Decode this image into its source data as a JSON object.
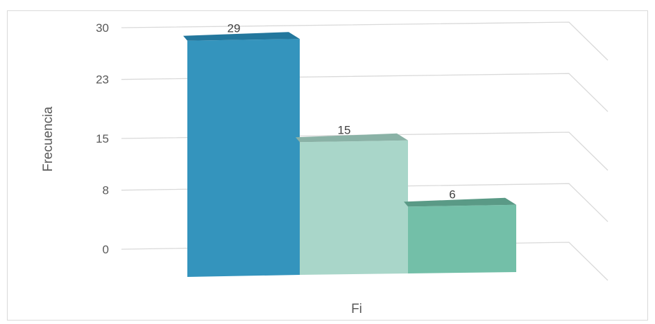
{
  "chart_data": {
    "type": "bar",
    "categories": [
      "",
      "",
      ""
    ],
    "values": [
      29,
      15,
      6
    ],
    "xlabel": "Fi",
    "ylabel": "Frecuencia",
    "yticks": [
      0,
      8,
      15,
      23,
      30
    ],
    "ylim": [
      0,
      30
    ],
    "grid": true,
    "legend": "none",
    "colors": [
      "#3494bd",
      "#a9d6c9",
      "#73bfa8"
    ],
    "top_colors": [
      "#23779d",
      "#8ab2a6",
      "#5a9a86"
    ]
  }
}
